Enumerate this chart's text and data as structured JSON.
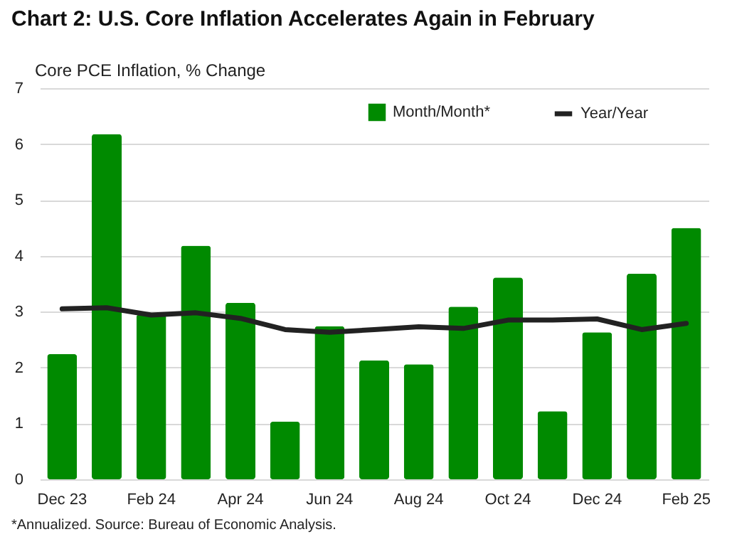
{
  "chart_data": {
    "type": "bar",
    "title": "Chart 2: U.S. Core Inflation Accelerates Again in February",
    "ylabel": "Core PCE Inflation, % Change",
    "annotations": [
      "*Annualized. Source: Bureau of Economic Analysis."
    ],
    "categories": [
      "Dec 23",
      null,
      "Feb 24",
      null,
      "Apr 24",
      null,
      "Jun 24",
      null,
      "Aug 24",
      null,
      "Oct 24",
      null,
      "Dec 24",
      null,
      "Feb 25"
    ],
    "series": [
      {
        "name": "Month/Month*",
        "color": "#008a00",
        "values": [
          2.24,
          6.18,
          2.95,
          4.18,
          3.16,
          1.03,
          2.74,
          2.13,
          2.06,
          3.09,
          3.61,
          1.22,
          2.63,
          3.68,
          4.5
        ]
      },
      {
        "name": "Year/Year",
        "type": "line",
        "color": "#222222",
        "values": [
          3.05,
          3.07,
          2.94,
          2.98,
          2.88,
          2.68,
          2.63,
          2.68,
          2.73,
          2.7,
          2.85,
          2.85,
          2.87,
          2.68,
          2.79
        ]
      }
    ],
    "ylim": [
      0,
      7
    ],
    "yticks": [
      0,
      1,
      2,
      3,
      4,
      5,
      6,
      7
    ],
    "grid": "y",
    "legend": "top right"
  }
}
